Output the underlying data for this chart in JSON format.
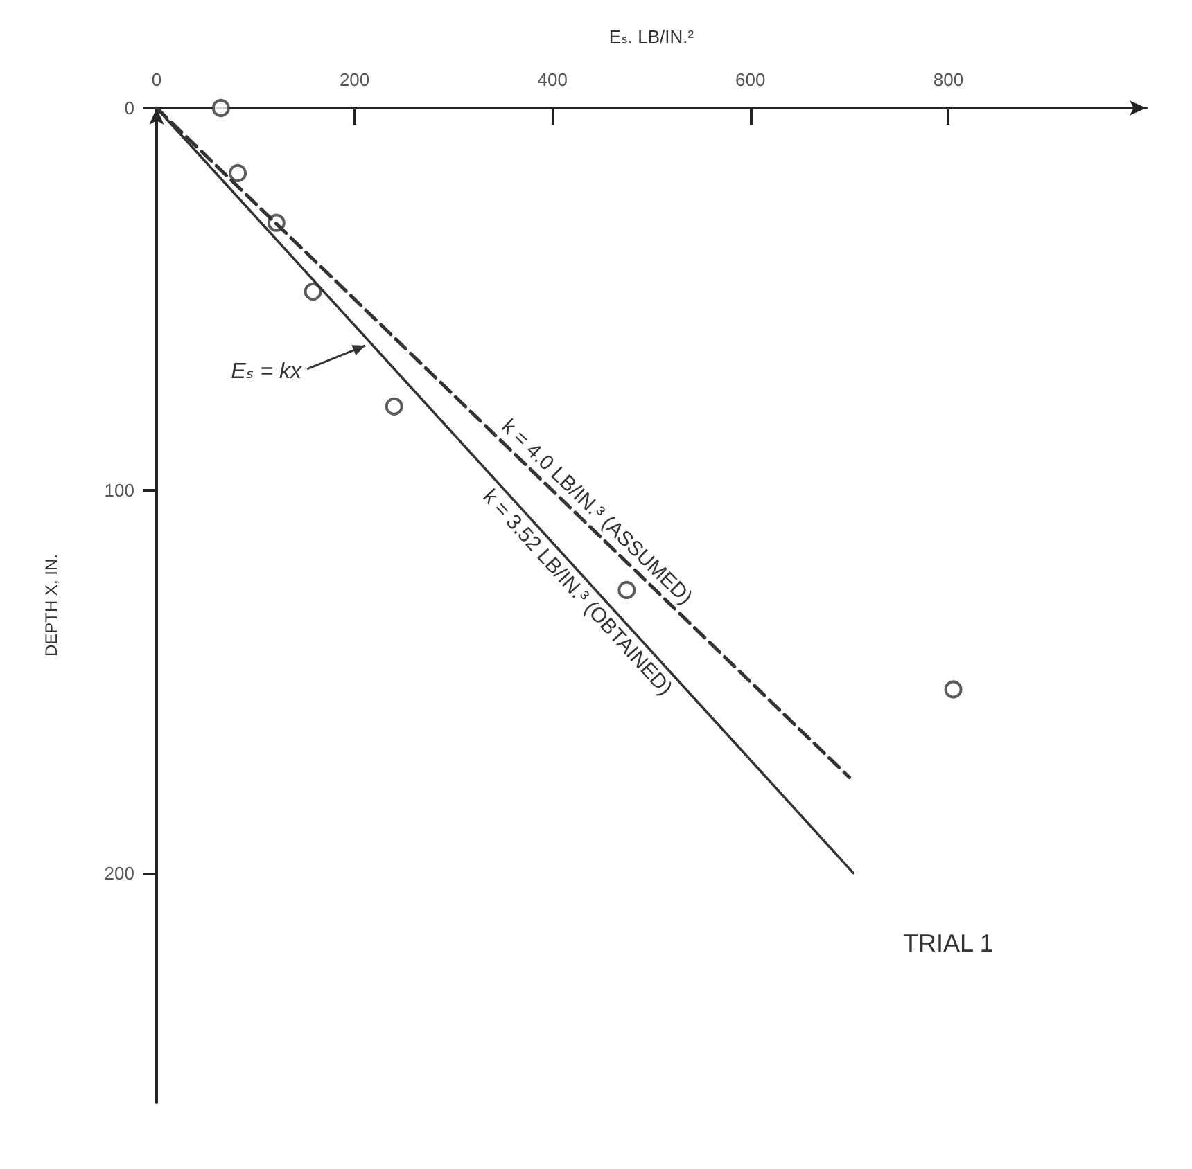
{
  "chart_data": {
    "type": "scatter",
    "xlabel": "Eₛ. LB/IN.²",
    "ylabel": "DEPTH X, IN.",
    "xlim": [
      0,
      1000
    ],
    "xticks": [
      0,
      200,
      400,
      600,
      800
    ],
    "ylim": [
      260,
      0
    ],
    "yticks": [
      0,
      100,
      200
    ],
    "marker": "circle",
    "series": [
      {
        "color": "#333333",
        "x": [
          65,
          82,
          121,
          158,
          240,
          475,
          805
        ],
        "values": [
          0,
          17,
          30,
          48,
          78,
          126,
          152
        ]
      },
      {
        "type": "line",
        "name": "k = 4.0 LB/IN.³ (ASSUMED)",
        "color": "#333333",
        "line_style": "dashed",
        "marker": "none",
        "x": [
          0,
          700
        ],
        "values": [
          0,
          175
        ]
      },
      {
        "type": "line",
        "name": "k = 3.52 LB/IN.³ (OBTAINED)",
        "color": "#333333",
        "line_style": "solid",
        "marker": "none",
        "x": [
          0,
          704
        ],
        "values": [
          0,
          200
        ]
      }
    ],
    "annotations": [
      {
        "text": "Eₛ = kx",
        "x": 215,
        "y": 61
      },
      "TRIAL 1"
    ]
  }
}
